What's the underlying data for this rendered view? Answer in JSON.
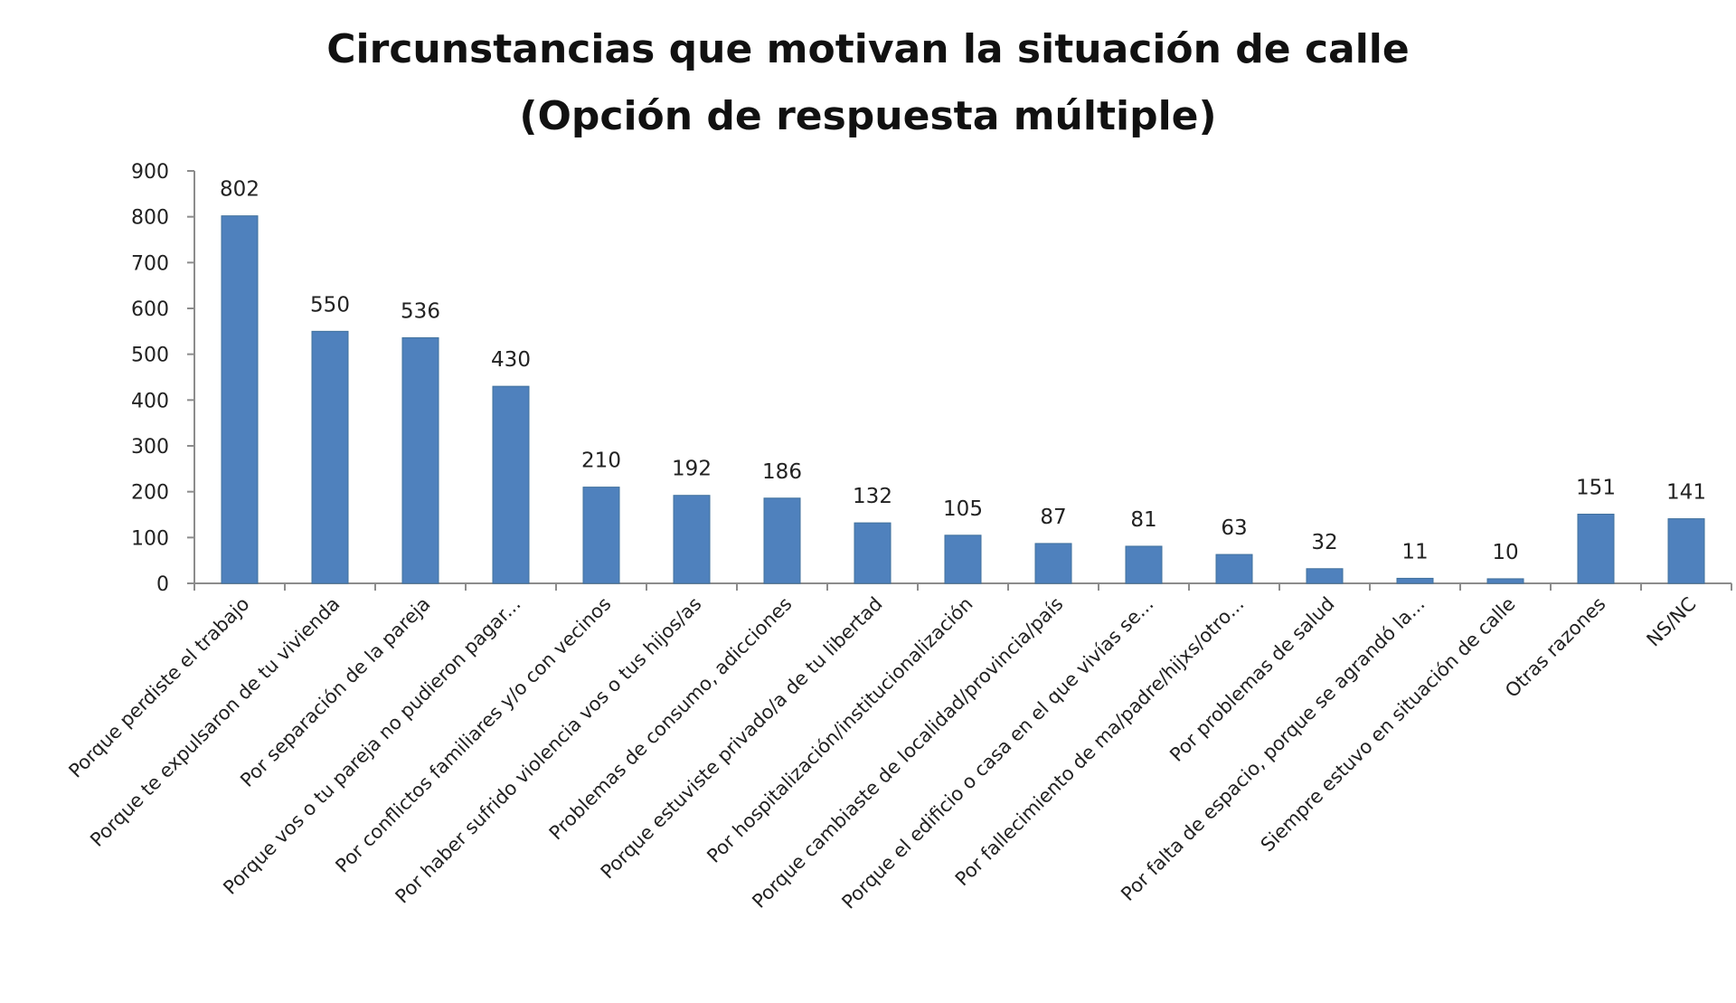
{
  "chart_data": {
    "type": "bar",
    "title": "Circunstancias que motivan la situación de calle",
    "subtitle": "(Opción de respuesta múltiple)",
    "xlabel": "",
    "ylabel": "",
    "ylim": [
      0,
      900
    ],
    "yticks": [
      0,
      100,
      200,
      300,
      400,
      500,
      600,
      700,
      800,
      900
    ],
    "grid": false,
    "legend": "none",
    "bar_color": "#4f81bd",
    "categories": [
      "Porque perdiste el trabajo",
      "Porque te expulsaron de tu vivienda",
      "Por separación de la pareja",
      "Porque vos o tu pareja no pudieron pagar...",
      "Por conflictos familiares y/o con vecinos",
      "Por haber sufrido violencia vos o tus hijos/as",
      "Problemas de consumo, adicciones",
      "Porque estuviste privado/a de tu libertad",
      "Por hospitalización/institucionalización",
      "Porque cambiaste de localidad/provincia/país",
      "Porque el edificio o casa en el que vivías se...",
      "Por fallecimiento de ma/padre/hijxs/otro...",
      "Por problemas de salud",
      "Por falta de espacio, porque se agrandó la...",
      "Siempre estuvo en situación de calle",
      "Otras razones",
      "NS/NC"
    ],
    "values": [
      802,
      550,
      536,
      430,
      210,
      192,
      186,
      132,
      105,
      87,
      81,
      63,
      32,
      11,
      10,
      151,
      141
    ]
  }
}
